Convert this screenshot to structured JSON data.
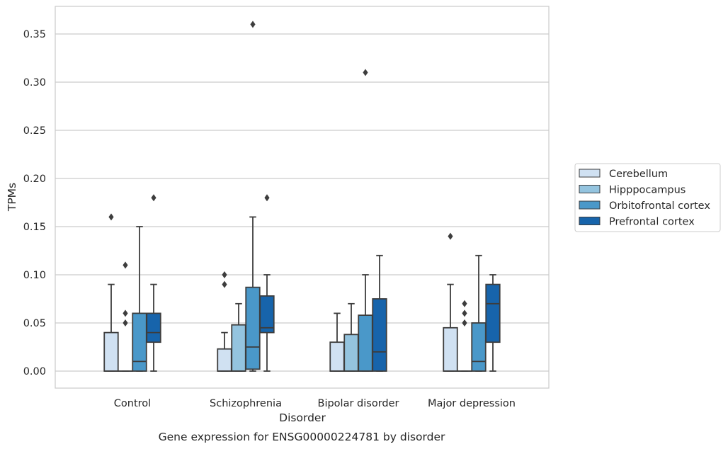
{
  "chart_data": {
    "type": "box",
    "xlabel": "Disorder",
    "ylabel": "TPMs",
    "caption": "Gene expression for ENSG00000224781 by disorder",
    "ylim": [
      -0.0175,
      0.3775
    ],
    "yticks": [
      0.0,
      0.05,
      0.1,
      0.15,
      0.2,
      0.25,
      0.3,
      0.35
    ],
    "ytick_labels": [
      "0.00",
      "0.05",
      "0.10",
      "0.15",
      "0.20",
      "0.25",
      "0.30",
      "0.35"
    ],
    "grid": "horizontal",
    "legend_position": "right, outside plot",
    "categories": [
      "Control",
      "Schizophrenia",
      "Bipolar disorder",
      "Major depression"
    ],
    "series": [
      {
        "name": "Cerebellum",
        "color": "#d0e1f2",
        "boxes": [
          {
            "min": 0.0,
            "q1": 0.0,
            "median": 0.0,
            "q3": 0.04,
            "max": 0.09,
            "outliers": [
              0.16
            ]
          },
          {
            "min": 0.0,
            "q1": 0.0,
            "median": 0.0,
            "q3": 0.023,
            "max": 0.04,
            "outliers": [
              0.09,
              0.1
            ]
          },
          {
            "min": 0.0,
            "q1": 0.0,
            "median": 0.0,
            "q3": 0.03,
            "max": 0.06,
            "outliers": []
          },
          {
            "min": 0.0,
            "q1": 0.0,
            "median": 0.0,
            "q3": 0.045,
            "max": 0.09,
            "outliers": [
              0.14
            ]
          }
        ]
      },
      {
        "name": "Hipppocampus",
        "color": "#94c4df",
        "boxes": [
          {
            "min": 0.0,
            "q1": 0.0,
            "median": 0.0,
            "q3": 0.0,
            "max": 0.0,
            "outliers": [
              0.05,
              0.06,
              0.11
            ]
          },
          {
            "min": 0.0,
            "q1": 0.0,
            "median": 0.0,
            "q3": 0.048,
            "max": 0.07,
            "outliers": []
          },
          {
            "min": 0.0,
            "q1": 0.0,
            "median": 0.0,
            "q3": 0.038,
            "max": 0.07,
            "outliers": []
          },
          {
            "min": 0.0,
            "q1": 0.0,
            "median": 0.0,
            "q3": 0.0,
            "max": 0.0,
            "outliers": [
              0.05,
              0.06,
              0.07
            ]
          }
        ]
      },
      {
        "name": "Orbitofrontal cortex",
        "color": "#4a98c9",
        "boxes": [
          {
            "min": 0.0,
            "q1": 0.0,
            "median": 0.01,
            "q3": 0.06,
            "max": 0.15,
            "outliers": []
          },
          {
            "min": 0.0,
            "q1": 0.002,
            "median": 0.025,
            "q3": 0.087,
            "max": 0.16,
            "outliers": [
              0.36
            ]
          },
          {
            "min": 0.0,
            "q1": 0.0,
            "median": 0.0,
            "q3": 0.058,
            "max": 0.1,
            "outliers": [
              0.31
            ]
          },
          {
            "min": 0.0,
            "q1": 0.0,
            "median": 0.01,
            "q3": 0.05,
            "max": 0.12,
            "outliers": []
          }
        ]
      },
      {
        "name": "Prefrontal cortex",
        "color": "#1764ab",
        "boxes": [
          {
            "min": 0.0,
            "q1": 0.03,
            "median": 0.04,
            "q3": 0.06,
            "max": 0.09,
            "outliers": [
              0.18
            ]
          },
          {
            "min": 0.0,
            "q1": 0.04,
            "median": 0.045,
            "q3": 0.078,
            "max": 0.1,
            "outliers": [
              0.18
            ]
          },
          {
            "min": 0.0,
            "q1": 0.0,
            "median": 0.02,
            "q3": 0.075,
            "max": 0.12,
            "outliers": []
          },
          {
            "min": 0.0,
            "q1": 0.03,
            "median": 0.07,
            "q3": 0.09,
            "max": 0.1,
            "outliers": []
          }
        ]
      }
    ]
  }
}
